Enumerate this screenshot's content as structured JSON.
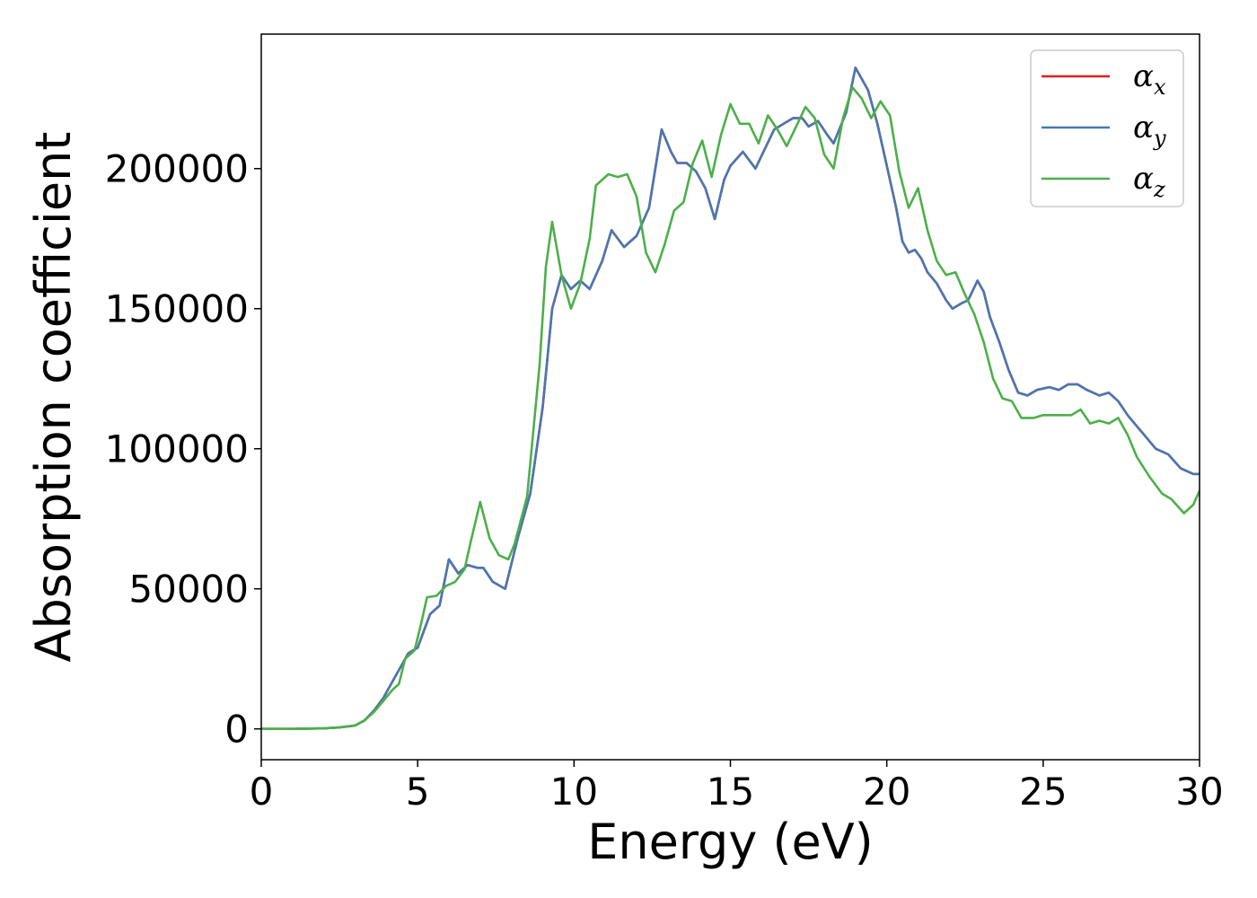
{
  "chart_data": {
    "type": "line",
    "title": "",
    "xlabel": "Energy (eV)",
    "ylabel": "Absorption coefficient",
    "xlim": [
      0,
      30
    ],
    "ylim": [
      -11000,
      248000
    ],
    "xticks": [
      0,
      5,
      10,
      15,
      20,
      25,
      30
    ],
    "xtick_labels": [
      "0",
      "5",
      "10",
      "15",
      "20",
      "25",
      "30"
    ],
    "yticks": [
      0,
      50000,
      100000,
      150000,
      200000
    ],
    "ytick_labels": [
      "0",
      "50000",
      "100000",
      "150000",
      "200000"
    ],
    "grid": false,
    "legend_position": "top-right",
    "series": [
      {
        "name": "α",
        "sub": "x",
        "color": "#e41a1c",
        "points": [
          [
            0,
            0
          ],
          [
            1,
            0
          ],
          [
            2,
            200
          ],
          [
            2.5,
            500
          ],
          [
            3,
            1200
          ],
          [
            3.3,
            3000
          ],
          [
            3.6,
            6500
          ],
          [
            3.9,
            11000
          ],
          [
            4.2,
            17000
          ],
          [
            4.5,
            23000
          ],
          [
            4.7,
            27000
          ],
          [
            5,
            29000
          ],
          [
            5.2,
            35000
          ],
          [
            5.4,
            41000
          ],
          [
            5.7,
            44000
          ],
          [
            5.9,
            55000
          ],
          [
            6,
            60500
          ],
          [
            6.3,
            55500
          ],
          [
            6.6,
            58500
          ],
          [
            6.9,
            57500
          ],
          [
            7.1,
            57500
          ],
          [
            7.4,
            52500
          ],
          [
            7.8,
            50000
          ],
          [
            8.2,
            68000
          ],
          [
            8.6,
            84000
          ],
          [
            9,
            115000
          ],
          [
            9.3,
            150000
          ],
          [
            9.6,
            162000
          ],
          [
            9.9,
            157000
          ],
          [
            10.2,
            160000
          ],
          [
            10.5,
            157000
          ],
          [
            10.9,
            167000
          ],
          [
            11.2,
            178000
          ],
          [
            11.6,
            172000
          ],
          [
            12,
            176000
          ],
          [
            12.4,
            186000
          ],
          [
            12.6,
            200000
          ],
          [
            12.8,
            214000
          ],
          [
            13.1,
            206000
          ],
          [
            13.3,
            202000
          ],
          [
            13.6,
            202000
          ],
          [
            13.9,
            199000
          ],
          [
            14.2,
            193000
          ],
          [
            14.5,
            182000
          ],
          [
            14.8,
            196000
          ],
          [
            15,
            201000
          ],
          [
            15.4,
            206000
          ],
          [
            15.8,
            200000
          ],
          [
            16.1,
            207000
          ],
          [
            16.4,
            214000
          ],
          [
            16.7,
            216000
          ],
          [
            17,
            218000
          ],
          [
            17.3,
            218000
          ],
          [
            17.5,
            215000
          ],
          [
            17.8,
            217000
          ],
          [
            18.1,
            212000
          ],
          [
            18.3,
            209000
          ],
          [
            18.7,
            220000
          ],
          [
            19,
            236000
          ],
          [
            19.4,
            228000
          ],
          [
            19.7,
            216000
          ],
          [
            20,
            201000
          ],
          [
            20.3,
            186000
          ],
          [
            20.5,
            174000
          ],
          [
            20.7,
            170000
          ],
          [
            20.9,
            171000
          ],
          [
            21.1,
            168000
          ],
          [
            21.3,
            163000
          ],
          [
            21.6,
            159000
          ],
          [
            21.9,
            153000
          ],
          [
            22.1,
            150000
          ],
          [
            22.4,
            152000
          ],
          [
            22.6,
            153000
          ],
          [
            22.9,
            160000
          ],
          [
            23.1,
            156000
          ],
          [
            23.3,
            147000
          ],
          [
            23.6,
            138000
          ],
          [
            23.9,
            128000
          ],
          [
            24.2,
            120000
          ],
          [
            24.5,
            119000
          ],
          [
            24.8,
            121000
          ],
          [
            25.2,
            122000
          ],
          [
            25.5,
            121000
          ],
          [
            25.8,
            123000
          ],
          [
            26.1,
            123000
          ],
          [
            26.4,
            121000
          ],
          [
            26.8,
            119000
          ],
          [
            27.1,
            120000
          ],
          [
            27.4,
            117000
          ],
          [
            27.7,
            112000
          ],
          [
            28,
            108000
          ],
          [
            28.3,
            104000
          ],
          [
            28.6,
            100000
          ],
          [
            29,
            98000
          ],
          [
            29.4,
            93000
          ],
          [
            29.8,
            91000
          ],
          [
            30,
            91000
          ]
        ]
      },
      {
        "name": "α",
        "sub": "y",
        "color": "#4878b0",
        "points": [
          [
            0,
            0
          ],
          [
            1,
            0
          ],
          [
            2,
            200
          ],
          [
            2.5,
            500
          ],
          [
            3,
            1200
          ],
          [
            3.3,
            3000
          ],
          [
            3.6,
            6500
          ],
          [
            3.9,
            11000
          ],
          [
            4.2,
            17000
          ],
          [
            4.5,
            23000
          ],
          [
            4.7,
            27000
          ],
          [
            5,
            29000
          ],
          [
            5.2,
            35000
          ],
          [
            5.4,
            41000
          ],
          [
            5.7,
            44000
          ],
          [
            5.9,
            55000
          ],
          [
            6,
            60500
          ],
          [
            6.3,
            55500
          ],
          [
            6.6,
            58500
          ],
          [
            6.9,
            57500
          ],
          [
            7.1,
            57500
          ],
          [
            7.4,
            52500
          ],
          [
            7.8,
            50000
          ],
          [
            8.2,
            68000
          ],
          [
            8.6,
            84000
          ],
          [
            9,
            115000
          ],
          [
            9.3,
            150000
          ],
          [
            9.6,
            162000
          ],
          [
            9.9,
            157000
          ],
          [
            10.2,
            160000
          ],
          [
            10.5,
            157000
          ],
          [
            10.9,
            167000
          ],
          [
            11.2,
            178000
          ],
          [
            11.6,
            172000
          ],
          [
            12,
            176000
          ],
          [
            12.4,
            186000
          ],
          [
            12.6,
            200000
          ],
          [
            12.8,
            214000
          ],
          [
            13.1,
            206000
          ],
          [
            13.3,
            202000
          ],
          [
            13.6,
            202000
          ],
          [
            13.9,
            199000
          ],
          [
            14.2,
            193000
          ],
          [
            14.5,
            182000
          ],
          [
            14.8,
            196000
          ],
          [
            15,
            201000
          ],
          [
            15.4,
            206000
          ],
          [
            15.8,
            200000
          ],
          [
            16.1,
            207000
          ],
          [
            16.4,
            214000
          ],
          [
            16.7,
            216000
          ],
          [
            17,
            218000
          ],
          [
            17.3,
            218000
          ],
          [
            17.5,
            215000
          ],
          [
            17.8,
            217000
          ],
          [
            18.1,
            212000
          ],
          [
            18.3,
            209000
          ],
          [
            18.7,
            220000
          ],
          [
            19,
            236000
          ],
          [
            19.4,
            228000
          ],
          [
            19.7,
            216000
          ],
          [
            20,
            201000
          ],
          [
            20.3,
            186000
          ],
          [
            20.5,
            174000
          ],
          [
            20.7,
            170000
          ],
          [
            20.9,
            171000
          ],
          [
            21.1,
            168000
          ],
          [
            21.3,
            163000
          ],
          [
            21.6,
            159000
          ],
          [
            21.9,
            153000
          ],
          [
            22.1,
            150000
          ],
          [
            22.4,
            152000
          ],
          [
            22.6,
            153000
          ],
          [
            22.9,
            160000
          ],
          [
            23.1,
            156000
          ],
          [
            23.3,
            147000
          ],
          [
            23.6,
            138000
          ],
          [
            23.9,
            128000
          ],
          [
            24.2,
            120000
          ],
          [
            24.5,
            119000
          ],
          [
            24.8,
            121000
          ],
          [
            25.2,
            122000
          ],
          [
            25.5,
            121000
          ],
          [
            25.8,
            123000
          ],
          [
            26.1,
            123000
          ],
          [
            26.4,
            121000
          ],
          [
            26.8,
            119000
          ],
          [
            27.1,
            120000
          ],
          [
            27.4,
            117000
          ],
          [
            27.7,
            112000
          ],
          [
            28,
            108000
          ],
          [
            28.3,
            104000
          ],
          [
            28.6,
            100000
          ],
          [
            29,
            98000
          ],
          [
            29.4,
            93000
          ],
          [
            29.8,
            91000
          ],
          [
            30,
            91000
          ]
        ]
      },
      {
        "name": "α",
        "sub": "z",
        "color": "#4daf4a",
        "points": [
          [
            0,
            0
          ],
          [
            1,
            0
          ],
          [
            2,
            200
          ],
          [
            2.5,
            500
          ],
          [
            3,
            1200
          ],
          [
            3.3,
            3000
          ],
          [
            3.6,
            6000
          ],
          [
            3.9,
            10000
          ],
          [
            4.2,
            14000
          ],
          [
            4.4,
            16000
          ],
          [
            4.6,
            25000
          ],
          [
            4.9,
            28000
          ],
          [
            5.1,
            37000
          ],
          [
            5.3,
            47000
          ],
          [
            5.6,
            47500
          ],
          [
            5.9,
            51000
          ],
          [
            6.2,
            52500
          ],
          [
            6.5,
            57000
          ],
          [
            6.7,
            67000
          ],
          [
            7,
            81000
          ],
          [
            7.3,
            68000
          ],
          [
            7.6,
            62000
          ],
          [
            7.9,
            60500
          ],
          [
            8.1,
            66000
          ],
          [
            8.5,
            83000
          ],
          [
            8.9,
            130000
          ],
          [
            9.1,
            165000
          ],
          [
            9.3,
            181000
          ],
          [
            9.6,
            162000
          ],
          [
            9.9,
            150000
          ],
          [
            10.2,
            159000
          ],
          [
            10.5,
            175000
          ],
          [
            10.7,
            194000
          ],
          [
            11.1,
            198000
          ],
          [
            11.4,
            197000
          ],
          [
            11.7,
            198000
          ],
          [
            12,
            190000
          ],
          [
            12.3,
            170000
          ],
          [
            12.6,
            163000
          ],
          [
            12.9,
            173000
          ],
          [
            13.2,
            185000
          ],
          [
            13.5,
            188000
          ],
          [
            13.8,
            202000
          ],
          [
            14.1,
            210000
          ],
          [
            14.4,
            197000
          ],
          [
            14.7,
            212000
          ],
          [
            15,
            223000
          ],
          [
            15.3,
            216000
          ],
          [
            15.6,
            216000
          ],
          [
            15.9,
            209000
          ],
          [
            16.2,
            219000
          ],
          [
            16.5,
            214000
          ],
          [
            16.8,
            208000
          ],
          [
            17.1,
            215000
          ],
          [
            17.4,
            222000
          ],
          [
            17.7,
            218000
          ],
          [
            18,
            205000
          ],
          [
            18.3,
            200000
          ],
          [
            18.6,
            218000
          ],
          [
            18.9,
            229000
          ],
          [
            19.2,
            225000
          ],
          [
            19.5,
            218000
          ],
          [
            19.8,
            224000
          ],
          [
            20.1,
            219000
          ],
          [
            20.4,
            199000
          ],
          [
            20.7,
            186000
          ],
          [
            21,
            193000
          ],
          [
            21.3,
            178000
          ],
          [
            21.6,
            167000
          ],
          [
            21.9,
            162000
          ],
          [
            22.2,
            163000
          ],
          [
            22.5,
            155000
          ],
          [
            22.8,
            148000
          ],
          [
            23.1,
            138000
          ],
          [
            23.4,
            125000
          ],
          [
            23.7,
            118000
          ],
          [
            24,
            117000
          ],
          [
            24.3,
            111000
          ],
          [
            24.7,
            111000
          ],
          [
            25,
            112000
          ],
          [
            25.5,
            112000
          ],
          [
            25.9,
            112000
          ],
          [
            26.2,
            114000
          ],
          [
            26.5,
            109000
          ],
          [
            26.8,
            110000
          ],
          [
            27.1,
            109000
          ],
          [
            27.4,
            111000
          ],
          [
            27.7,
            105000
          ],
          [
            28,
            97000
          ],
          [
            28.4,
            90000
          ],
          [
            28.8,
            84000
          ],
          [
            29.1,
            82000
          ],
          [
            29.5,
            77000
          ],
          [
            29.8,
            80000
          ],
          [
            30,
            85000
          ]
        ]
      }
    ]
  }
}
